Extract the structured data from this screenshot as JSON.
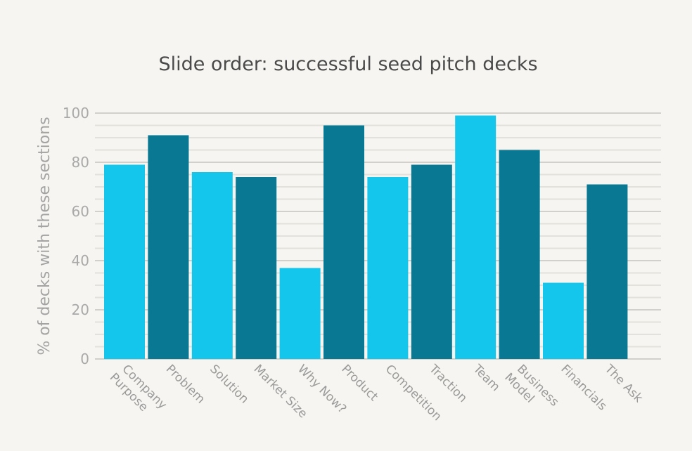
{
  "chart_data": {
    "type": "bar",
    "title": "Slide order: successful seed pitch decks",
    "xlabel": "",
    "ylabel": "% of decks with these sections",
    "ylim": [
      0,
      100
    ],
    "yticks": [
      0,
      20,
      40,
      60,
      80,
      100
    ],
    "grid": true,
    "categories": [
      [
        "Company",
        "Purpose"
      ],
      [
        "Problem"
      ],
      [
        "Solution"
      ],
      [
        "Market Size"
      ],
      [
        "Why Now?"
      ],
      [
        "Product"
      ],
      [
        "Competition"
      ],
      [
        "Traction"
      ],
      [
        "Team"
      ],
      [
        "Business",
        "Model"
      ],
      [
        "Financials"
      ],
      [
        "The Ask"
      ]
    ],
    "values": [
      79,
      91,
      76,
      74,
      37,
      95,
      74,
      79,
      99,
      85,
      31,
      71
    ],
    "colors": [
      "#14c6eb",
      "#087893"
    ],
    "color_pattern": [
      0,
      1,
      0,
      1,
      0,
      1,
      0,
      1,
      0,
      1,
      0,
      1
    ]
  }
}
